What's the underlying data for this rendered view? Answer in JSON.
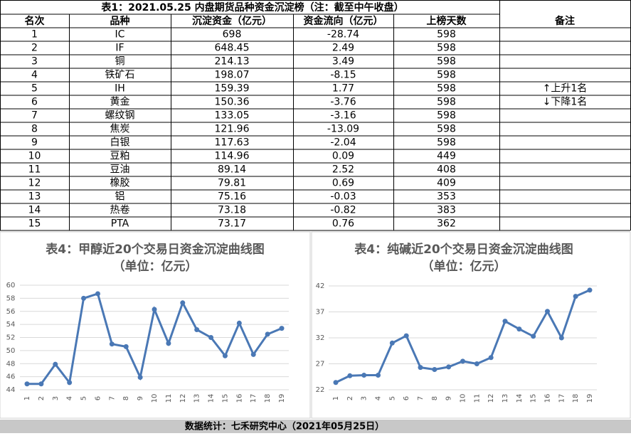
{
  "table": {
    "title": "表1：2021.05.25 内盘期货品种资金沉淀榜（注：截至中午收盘）",
    "header": [
      "名次",
      "品种",
      "沉淀资金（亿元）",
      "资金流向（亿元）",
      "上榜天数",
      "备注"
    ],
    "rows": [
      [
        "1",
        "IC",
        "698",
        "-28.74",
        "598",
        null
      ],
      [
        "2",
        "IF",
        "648.45",
        "2.49",
        "598",
        null
      ],
      [
        "3",
        "铜",
        "214.13",
        "3.49",
        "598",
        null
      ],
      [
        "4",
        "铁矿石",
        "198.07",
        "-8.15",
        "598",
        null
      ],
      [
        "5",
        "IH",
        "159.39",
        "1.77",
        "598",
        "↑上升1名"
      ],
      [
        "6",
        "黄金",
        "150.36",
        "-3.76",
        "598",
        "↓下降1名"
      ],
      [
        "7",
        "螺纹钢",
        "133.05",
        "-3.16",
        "598",
        null
      ],
      [
        "8",
        "焦炭",
        "121.96",
        "-13.09",
        "598",
        null
      ],
      [
        "9",
        "白银",
        "117.63",
        "-2.04",
        "598",
        null
      ],
      [
        "10",
        "豆粕",
        "114.96",
        "0.09",
        "449",
        null
      ],
      [
        "11",
        "豆油",
        "89.14",
        "2.52",
        "408",
        null
      ],
      [
        "12",
        "橡胶",
        "79.81",
        "0.69",
        "409",
        null
      ],
      [
        "13",
        "铝",
        "75.16",
        "-0.03",
        "353",
        null
      ],
      [
        "14",
        "热卷",
        "73.18",
        "-0.82",
        "383",
        null
      ],
      [
        "15",
        "PTA",
        "73.17",
        "0.76",
        "362",
        null
      ]
    ]
  },
  "chart_data": [
    {
      "type": "line",
      "title": "表4：甲醇近20个交易日资金沉淀曲线图",
      "subtitle": "（单位：亿元）",
      "categories": [
        "1",
        "2",
        "3",
        "4",
        "5",
        "6",
        "7",
        "8",
        "9",
        "10",
        "11",
        "12",
        "13",
        "14",
        "15",
        "16",
        "17",
        "18",
        "19"
      ],
      "series": [
        {
          "name": "甲醇",
          "color": "#4a78b5",
          "values": [
            44.9,
            44.9,
            47.9,
            45.1,
            58.0,
            58.7,
            51.0,
            50.6,
            45.9,
            56.3,
            51.1,
            57.3,
            53.2,
            52.0,
            49.2,
            54.2,
            49.4,
            52.5,
            53.4
          ]
        }
      ],
      "ylim": [
        44,
        60
      ],
      "yticks": [
        44,
        46,
        48,
        50,
        52,
        54,
        56,
        58,
        60
      ],
      "grid": true
    },
    {
      "type": "line",
      "title": "表4：纯碱近20个交易日资金沉淀曲线图",
      "subtitle": "（单位：亿元）",
      "categories": [
        "1",
        "2",
        "3",
        "4",
        "5",
        "6",
        "7",
        "8",
        "9",
        "10",
        "11",
        "12",
        "13",
        "14",
        "15",
        "16",
        "17",
        "18",
        "19"
      ],
      "series": [
        {
          "name": "纯碱",
          "color": "#4a78b5",
          "values": [
            23.4,
            24.7,
            24.8,
            24.8,
            31.0,
            32.4,
            26.3,
            25.9,
            26.4,
            27.5,
            27.0,
            28.2,
            35.2,
            33.7,
            32.3,
            37.1,
            32.0,
            40.0,
            41.2
          ]
        }
      ],
      "ylim": [
        22,
        42
      ],
      "yticks": [
        22,
        27,
        32,
        37,
        42
      ],
      "grid": true
    }
  ],
  "footer": "数据统计：七禾研究中心（2021年05月25日）"
}
